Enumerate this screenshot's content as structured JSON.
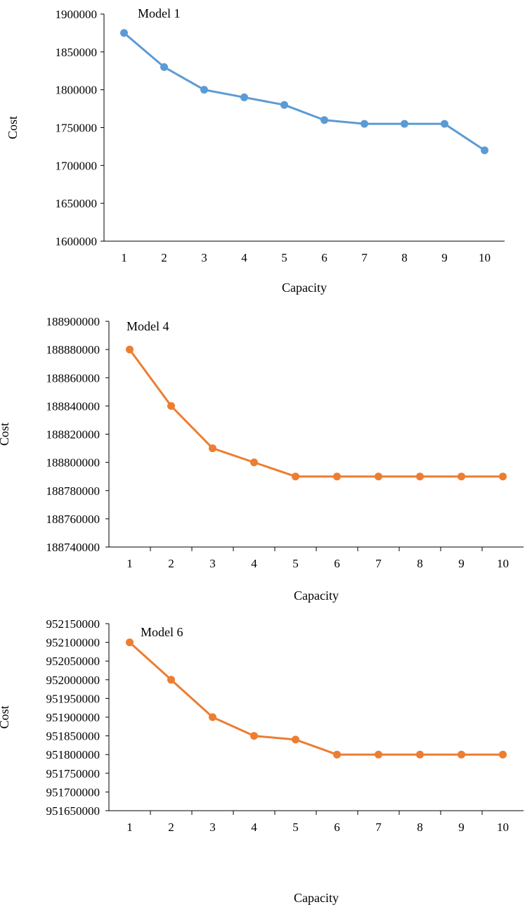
{
  "chart_data": [
    {
      "type": "line",
      "annotation": "Model 1",
      "xlabel": "Capacity",
      "ylabel": "Cost",
      "categories": [
        "1",
        "2",
        "3",
        "4",
        "5",
        "6",
        "7",
        "8",
        "9",
        "10"
      ],
      "series": [
        {
          "values": [
            1875000,
            1830000,
            1800000,
            1790000,
            1780000,
            1760000,
            1755000,
            1755000,
            1755000,
            1720000
          ],
          "color": "#5B9BD5"
        }
      ],
      "ylim": [
        1600000,
        1900000
      ],
      "yticks": [
        1600000,
        1650000,
        1700000,
        1750000,
        1800000,
        1850000,
        1900000
      ],
      "grid": false,
      "x_tick_marks": false
    },
    {
      "type": "line",
      "annotation": "Model 4",
      "xlabel": "Capacity",
      "ylabel": "Cost",
      "categories": [
        "1",
        "2",
        "3",
        "4",
        "5",
        "6",
        "7",
        "8",
        "9",
        "10"
      ],
      "series": [
        {
          "values": [
            188880000,
            188840000,
            188810000,
            188800000,
            188790000,
            188790000,
            188790000,
            188790000,
            188790000,
            188790000
          ],
          "color": "#ED7D31"
        }
      ],
      "ylim": [
        188740000,
        188900000
      ],
      "yticks": [
        188740000,
        188760000,
        188780000,
        188800000,
        188820000,
        188840000,
        188860000,
        188880000,
        188900000
      ],
      "grid": false,
      "x_tick_marks": true
    },
    {
      "type": "line",
      "annotation": "Model 6",
      "xlabel": "Capacity",
      "ylabel": "Cost",
      "categories": [
        "1",
        "2",
        "3",
        "4",
        "5",
        "6",
        "7",
        "8",
        "9",
        "10"
      ],
      "series": [
        {
          "values": [
            952100000,
            952000000,
            951900000,
            951850000,
            951840000,
            951800000,
            951800000,
            951800000,
            951800000,
            951800000
          ],
          "color": "#ED7D31"
        }
      ],
      "ylim": [
        951650000,
        952150000
      ],
      "yticks": [
        951650000,
        951700000,
        951750000,
        951800000,
        951850000,
        951900000,
        951950000,
        952000000,
        952050000,
        952100000,
        952150000
      ],
      "grid": false,
      "x_tick_marks": true
    }
  ]
}
